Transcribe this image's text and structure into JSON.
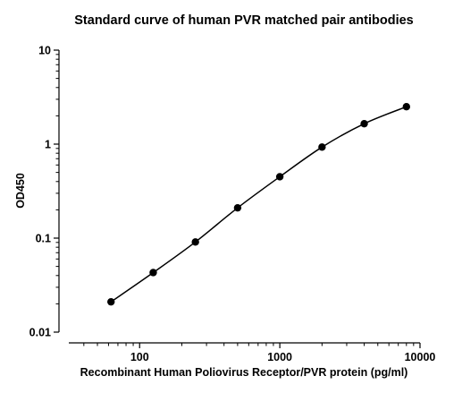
{
  "chart_data": {
    "type": "scatter",
    "title": "Standard curve of human PVR matched pair antibodies",
    "xlabel": "Recombinant Human Poliovirus Receptor/PVR protein (pg/ml)",
    "ylabel": "OD450",
    "x_scale": "log",
    "y_scale": "log",
    "xlim": [
      31.25,
      10000
    ],
    "ylim": [
      0.01,
      10
    ],
    "x_ticks": [
      {
        "value": 100,
        "label": "100"
      },
      {
        "value": 1000,
        "label": "1000"
      },
      {
        "value": 10000,
        "label": "10000"
      }
    ],
    "y_ticks": [
      {
        "value": 0.01,
        "label": "0.01"
      },
      {
        "value": 0.1,
        "label": "0.1"
      },
      {
        "value": 1,
        "label": "1"
      },
      {
        "value": 10,
        "label": "10"
      }
    ],
    "grid": false,
    "fit_curve": true,
    "series": [
      {
        "color": "#000000",
        "x": [
          62.5,
          125,
          250,
          500,
          1000,
          2000,
          4000,
          8000
        ],
        "y": [
          0.021,
          0.043,
          0.091,
          0.21,
          0.45,
          0.93,
          1.65,
          2.5
        ]
      }
    ]
  }
}
